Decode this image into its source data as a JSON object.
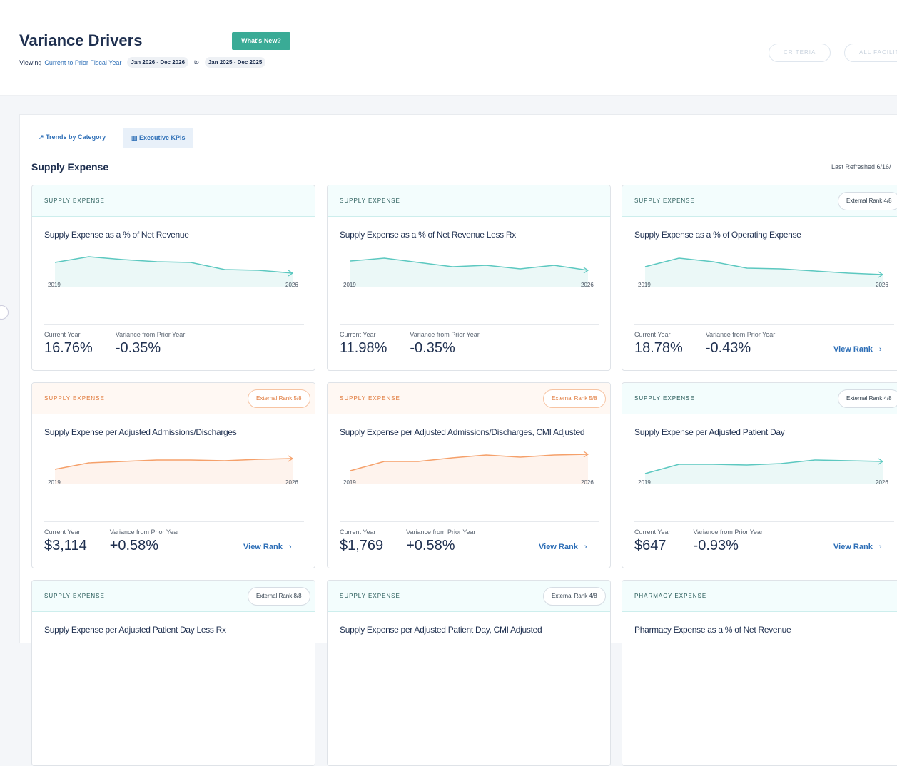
{
  "header": {
    "title": "Variance Drivers",
    "whats_new": "What's New?",
    "viewing": "Viewing",
    "comparison": "Current to Prior Fiscal Year",
    "current_range": "Jan 2026 - Dec 2026",
    "to": "to",
    "prior_range": "Jan 2025 - Dec 2025",
    "criteria": "CRITERIA",
    "facilities": "ALL FACILITIES"
  },
  "tabs": [
    "Trends by Category",
    "Executive KPIs"
  ],
  "section": {
    "title": "Supply Expense",
    "refreshed": "Last Refreshed 6/16/"
  },
  "cards": [
    {
      "category": "SUPPLY EXPENSE",
      "title": "Supply Expense as a % of Net Revenue",
      "color": "#5cc8c0",
      "start": "2019",
      "end": "2026",
      "trend": [
        42,
        50,
        46,
        43,
        42,
        32,
        31,
        27
      ],
      "current_label": "Current Year",
      "current": "16.76%",
      "variance_label": "Variance from Prior Year",
      "variance": "-0.35%"
    },
    {
      "category": "SUPPLY EXPENSE",
      "title": "Supply Expense as a % of Net Revenue Less Rx",
      "color": "#5cc8c0",
      "start": "2019",
      "end": "2026",
      "trend": [
        44,
        48,
        42,
        36,
        38,
        33,
        38,
        31
      ],
      "current_label": "Current Year",
      "current": "11.98%",
      "variance_label": "Variance from Prior Year",
      "variance": "-0.35%"
    },
    {
      "category": "SUPPLY EXPENSE",
      "rank": "External Rank 4/8",
      "title": "Supply Expense as a % of Operating Expense",
      "color": "#5cc8c0",
      "start": "2019",
      "end": "2026",
      "trend": [
        36,
        48,
        43,
        34,
        33,
        30,
        27,
        25
      ],
      "current_label": "Current Year",
      "current": "18.78%",
      "variance_label": "Variance from Prior Year",
      "variance": "-0.43%",
      "link": "View Rank"
    },
    {
      "category": "SUPPLY EXPENSE",
      "rank": "External Rank 5/8",
      "title": "Supply Expense per Adjusted Admissions/Discharges",
      "color": "#f5a06a",
      "start": "2019",
      "end": "2026",
      "trend": [
        29,
        38,
        40,
        42,
        42,
        41,
        43,
        44
      ],
      "current_label": "Current Year",
      "current": "$3,114",
      "variance_label": "Variance from Prior Year",
      "variance": "+0.58%",
      "link": "View Rank"
    },
    {
      "category": "SUPPLY EXPENSE",
      "rank": "External Rank 5/8",
      "title": "Supply Expense per Adjusted Admissions/Discharges, CMI Adjusted",
      "color": "#f5a06a",
      "start": "2019",
      "end": "2026",
      "trend": [
        27,
        40,
        40,
        45,
        49,
        46,
        49,
        50
      ],
      "current_label": "Current Year",
      "current": "$1,769",
      "variance_label": "Variance from Prior Year",
      "variance": "+0.58%",
      "link": "View Rank"
    },
    {
      "category": "SUPPLY EXPENSE",
      "rank": "External Rank 4/8",
      "title": "Supply Expense per Adjusted Patient Day",
      "color": "#5cc8c0",
      "start": "2019",
      "end": "2026",
      "trend": [
        23,
        36,
        36,
        35,
        37,
        42,
        41,
        40
      ],
      "current_label": "Current Year",
      "current": "$647",
      "variance_label": "Variance from Prior Year",
      "variance": "-0.93%",
      "link": "View Rank"
    },
    {
      "category": "SUPPLY EXPENSE",
      "rank": "External Rank 8/8",
      "title": "Supply Expense per Adjusted Patient Day Less Rx",
      "color": "#5cc8c0"
    },
    {
      "category": "SUPPLY EXPENSE",
      "rank": "External Rank 4/8",
      "title": "Supply Expense per Adjusted Patient Day, CMI Adjusted",
      "color": "#5cc8c0"
    },
    {
      "category": "PHARMACY EXPENSE",
      "title": "Pharmacy Expense as a % of Net Revenue",
      "color": "#5cc8c0"
    }
  ]
}
